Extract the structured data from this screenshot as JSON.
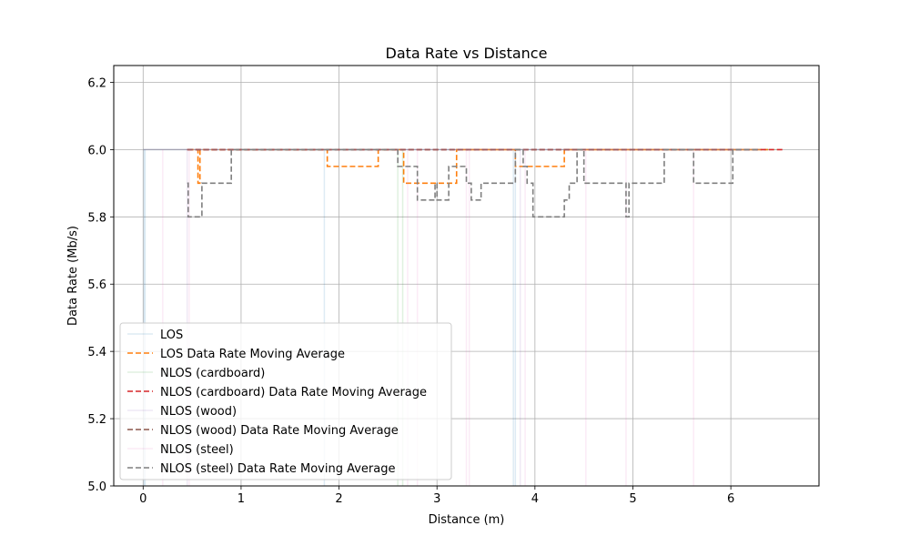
{
  "chart_data": {
    "type": "line",
    "title": "Data Rate vs Distance",
    "xlabel": "Distance (m)",
    "ylabel": "Data Rate (Mb/s)",
    "xlim": [
      -0.3,
      6.9
    ],
    "ylim": [
      5.0,
      6.25
    ],
    "xticks": [
      "0",
      "1",
      "2",
      "3",
      "4",
      "5",
      "6"
    ],
    "yticks": [
      "5.0",
      "5.2",
      "5.4",
      "5.6",
      "5.8",
      "6.0",
      "6.2"
    ],
    "grid": true,
    "legend_position": "lower-left",
    "series": [
      {
        "name": "LOS",
        "color": "#1f77b4",
        "style": "solid-faint",
        "baseline": 6.0,
        "x_range": [
          0.0,
          6.38
        ],
        "dips": [
          0.01,
          0.02,
          1.85,
          3.78,
          3.8
        ],
        "points": [
          [
            0.0,
            6.0
          ],
          [
            6.38,
            6.0
          ]
        ]
      },
      {
        "name": "LOS Data Rate Moving Average",
        "color": "#ff7f0e",
        "style": "dashed",
        "points": [
          [
            0.46,
            6.0
          ],
          [
            0.56,
            6.0
          ],
          [
            0.56,
            5.9
          ],
          [
            0.58,
            5.9
          ],
          [
            0.58,
            6.0
          ],
          [
            1.88,
            6.0
          ],
          [
            1.88,
            5.95
          ],
          [
            2.4,
            5.95
          ],
          [
            2.4,
            6.0
          ],
          [
            2.66,
            6.0
          ],
          [
            2.66,
            5.9
          ],
          [
            3.2,
            5.9
          ],
          [
            3.2,
            6.0
          ],
          [
            3.8,
            6.0
          ],
          [
            3.8,
            5.95
          ],
          [
            4.3,
            5.95
          ],
          [
            4.3,
            6.0
          ],
          [
            6.38,
            6.0
          ]
        ]
      },
      {
        "name": "NLOS (cardboard)",
        "color": "#2ca02c",
        "style": "solid-faint",
        "baseline": 6.0,
        "x_range": [
          0.0,
          6.5
        ],
        "dips": [
          2.6,
          2.65
        ],
        "points": [
          [
            0.0,
            6.0
          ],
          [
            6.5,
            6.0
          ]
        ]
      },
      {
        "name": "NLOS (cardboard) Data Rate Moving Average",
        "color": "#d62728",
        "style": "dashed",
        "points": [
          [
            0.45,
            6.0
          ],
          [
            6.55,
            6.0
          ]
        ]
      },
      {
        "name": "NLOS (wood)",
        "color": "#9467bd",
        "style": "solid-faint",
        "baseline": 6.0,
        "x_range": [
          0.0,
          6.3
        ],
        "dips": [
          0.45,
          3.85
        ],
        "points": [
          [
            0.0,
            6.0
          ],
          [
            6.3,
            6.0
          ]
        ]
      },
      {
        "name": "NLOS (wood) Data Rate Moving Average",
        "color": "#8c564b",
        "style": "dashed",
        "points": [
          [
            0.45,
            6.0
          ],
          [
            6.3,
            6.0
          ]
        ]
      },
      {
        "name": "NLOS (steel)",
        "color": "#e377c2",
        "style": "solid-faint",
        "baseline": 6.0,
        "x_range": [
          0.0,
          6.3
        ],
        "dips": [
          0.2,
          0.47,
          2.7,
          2.8,
          3.3,
          3.33,
          3.9,
          4.52,
          4.93,
          5.62
        ],
        "points": [
          [
            0.0,
            6.0
          ],
          [
            6.3,
            6.0
          ]
        ]
      },
      {
        "name": "NLOS (steel) Data Rate Moving Average",
        "color": "#7f7f7f",
        "style": "dashed",
        "points": [
          [
            0.45,
            5.9
          ],
          [
            0.46,
            5.9
          ],
          [
            0.46,
            5.8
          ],
          [
            0.6,
            5.8
          ],
          [
            0.6,
            5.9
          ],
          [
            0.63,
            5.9
          ],
          [
            0.63,
            5.9
          ],
          [
            0.9,
            5.9
          ],
          [
            0.9,
            6.0
          ],
          [
            2.6,
            6.0
          ],
          [
            2.6,
            5.95
          ],
          [
            2.72,
            5.95
          ],
          [
            2.72,
            5.95
          ],
          [
            2.8,
            5.95
          ],
          [
            2.8,
            5.85
          ],
          [
            2.98,
            5.85
          ],
          [
            2.98,
            5.9
          ],
          [
            3.0,
            5.9
          ],
          [
            3.0,
            5.85
          ],
          [
            3.12,
            5.85
          ],
          [
            3.12,
            5.95
          ],
          [
            3.3,
            5.95
          ],
          [
            3.3,
            5.9
          ],
          [
            3.35,
            5.9
          ],
          [
            3.35,
            5.85
          ],
          [
            3.45,
            5.85
          ],
          [
            3.45,
            5.9
          ],
          [
            3.8,
            5.9
          ],
          [
            3.8,
            6.0
          ],
          [
            3.88,
            6.0
          ],
          [
            3.88,
            5.95
          ],
          [
            3.92,
            5.95
          ],
          [
            3.92,
            5.9
          ],
          [
            3.98,
            5.9
          ],
          [
            3.98,
            5.8
          ],
          [
            4.3,
            5.8
          ],
          [
            4.3,
            5.85
          ],
          [
            4.35,
            5.85
          ],
          [
            4.35,
            5.9
          ],
          [
            4.43,
            5.9
          ],
          [
            4.43,
            6.0
          ],
          [
            4.5,
            6.0
          ],
          [
            4.5,
            5.9
          ],
          [
            4.93,
            5.9
          ],
          [
            4.93,
            5.8
          ],
          [
            4.96,
            5.8
          ],
          [
            4.96,
            5.9
          ],
          [
            5.32,
            5.9
          ],
          [
            5.32,
            6.0
          ],
          [
            5.62,
            6.0
          ],
          [
            5.62,
            5.9
          ],
          [
            6.02,
            5.9
          ],
          [
            6.02,
            6.0
          ],
          [
            6.3,
            6.0
          ]
        ]
      }
    ]
  }
}
